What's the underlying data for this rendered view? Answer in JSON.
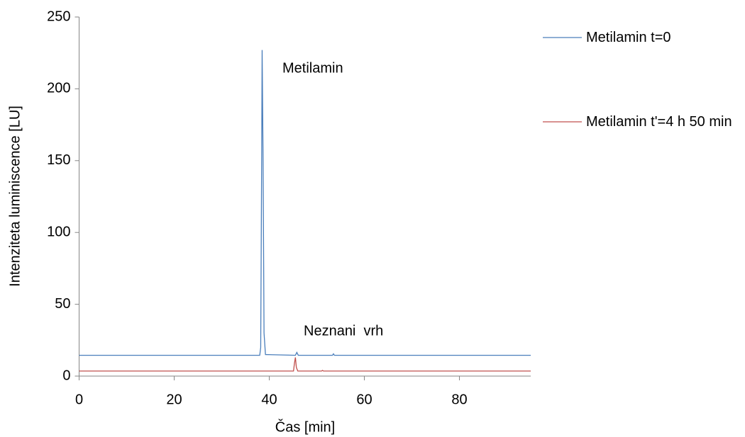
{
  "chart_data": {
    "type": "line",
    "x_label": "Čas [min]",
    "y_label": "Intenziteta luminiscence [LU]",
    "xlim": [
      0,
      95
    ],
    "xticks": [
      0,
      20,
      40,
      60,
      80
    ],
    "ylim": [
      0,
      250
    ],
    "yticks": [
      0,
      50,
      100,
      150,
      200,
      250
    ],
    "grid": false,
    "legend": "right",
    "annotations": [
      "Metilamin",
      "Neznani  vrh"
    ],
    "series": [
      {
        "name": "Metilamin t=0",
        "color": "#4a7ebb",
        "x": [
          0,
          38,
          38.2,
          38.4,
          38.5,
          38.7,
          38.9,
          39.2,
          45.5,
          45.8,
          46.1,
          53.3,
          53.5,
          53.7,
          95
        ],
        "values": [
          14.5,
          14.5,
          20,
          150,
          227,
          150,
          30,
          15,
          14.5,
          16.5,
          14.5,
          14.5,
          15.5,
          14.5,
          14.5
        ]
      },
      {
        "name": "Metilamin t'=4 h 50 min",
        "color": "#c0504d",
        "x": [
          0,
          45.1,
          45.3,
          45.5,
          45.7,
          46,
          51,
          51.2,
          51.4,
          95
        ],
        "values": [
          3.5,
          3.5,
          9,
          13,
          6,
          3.5,
          3.5,
          4,
          3.5,
          3.5
        ]
      }
    ]
  }
}
